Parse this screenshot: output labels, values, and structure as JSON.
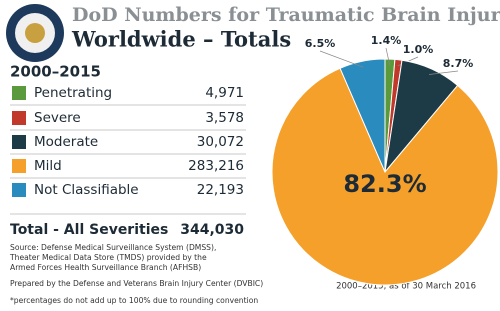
{
  "header": {
    "title": "DoD Numbers for Traumatic Brain Injury",
    "subtitle": "Worldwide – Totals",
    "period": "2000–2015"
  },
  "legend": [
    {
      "label": "Penetrating",
      "count": "4,971"
    },
    {
      "label": "Severe",
      "count": "3,578"
    },
    {
      "label": "Moderate",
      "count": "30,072"
    },
    {
      "label": "Mild",
      "count": "283,216"
    },
    {
      "label": "Not Classifiable",
      "count": "22,193"
    }
  ],
  "total": {
    "label": "Total - All Severities",
    "value": "344,030"
  },
  "source": [
    "Source: Defense Medical Surveillance System (DMSS),",
    "Theater Medical Data Store (TMDS) provided by the",
    "Armed Forces Health Surveillance Branch (AFHSB)"
  ],
  "prepared_by": "Prepared by the Defense and Veterans Brain Injury Center (DVBIC)",
  "footnote": "*percentages do not add up to 100% due to rounding convention",
  "chart_data": {
    "type": "pie",
    "subtitle": "2000–2015, as of 30 March 2016",
    "categories": [
      "Penetrating",
      "Severe",
      "Moderate",
      "Mild",
      "Not Classifiable"
    ],
    "values": [
      1.4,
      1.0,
      8.7,
      82.3,
      6.5
    ],
    "value_labels": [
      "1.4%",
      "1.0%",
      "8.7%",
      "82.3%",
      "6.5%"
    ],
    "colors": [
      "#5a9a3c",
      "#c0392b",
      "#1d3a47",
      "#f5a02a",
      "#2a8bbf"
    ]
  }
}
